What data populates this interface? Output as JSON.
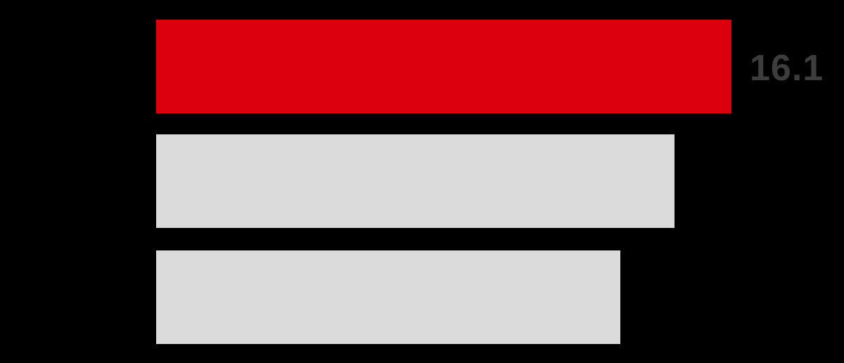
{
  "background_color": "#000000",
  "chart_data": {
    "type": "bar",
    "orientation": "horizontal",
    "title": "",
    "xlabel": "",
    "ylabel": "",
    "categories": [
      "",
      "",
      ""
    ],
    "values": [
      16.1,
      14.5,
      13.0
    ],
    "values_estimated": [
      false,
      true,
      true
    ],
    "data_labels": [
      "16.1",
      "",
      ""
    ],
    "colors": [
      "#dc000f",
      "#dbdbdb",
      "#dbdbdb"
    ],
    "data_label_color": "#3d3d3d",
    "xlim": [
      0,
      19.2
    ],
    "grid": false,
    "legend": false,
    "axes_visible": false
  }
}
